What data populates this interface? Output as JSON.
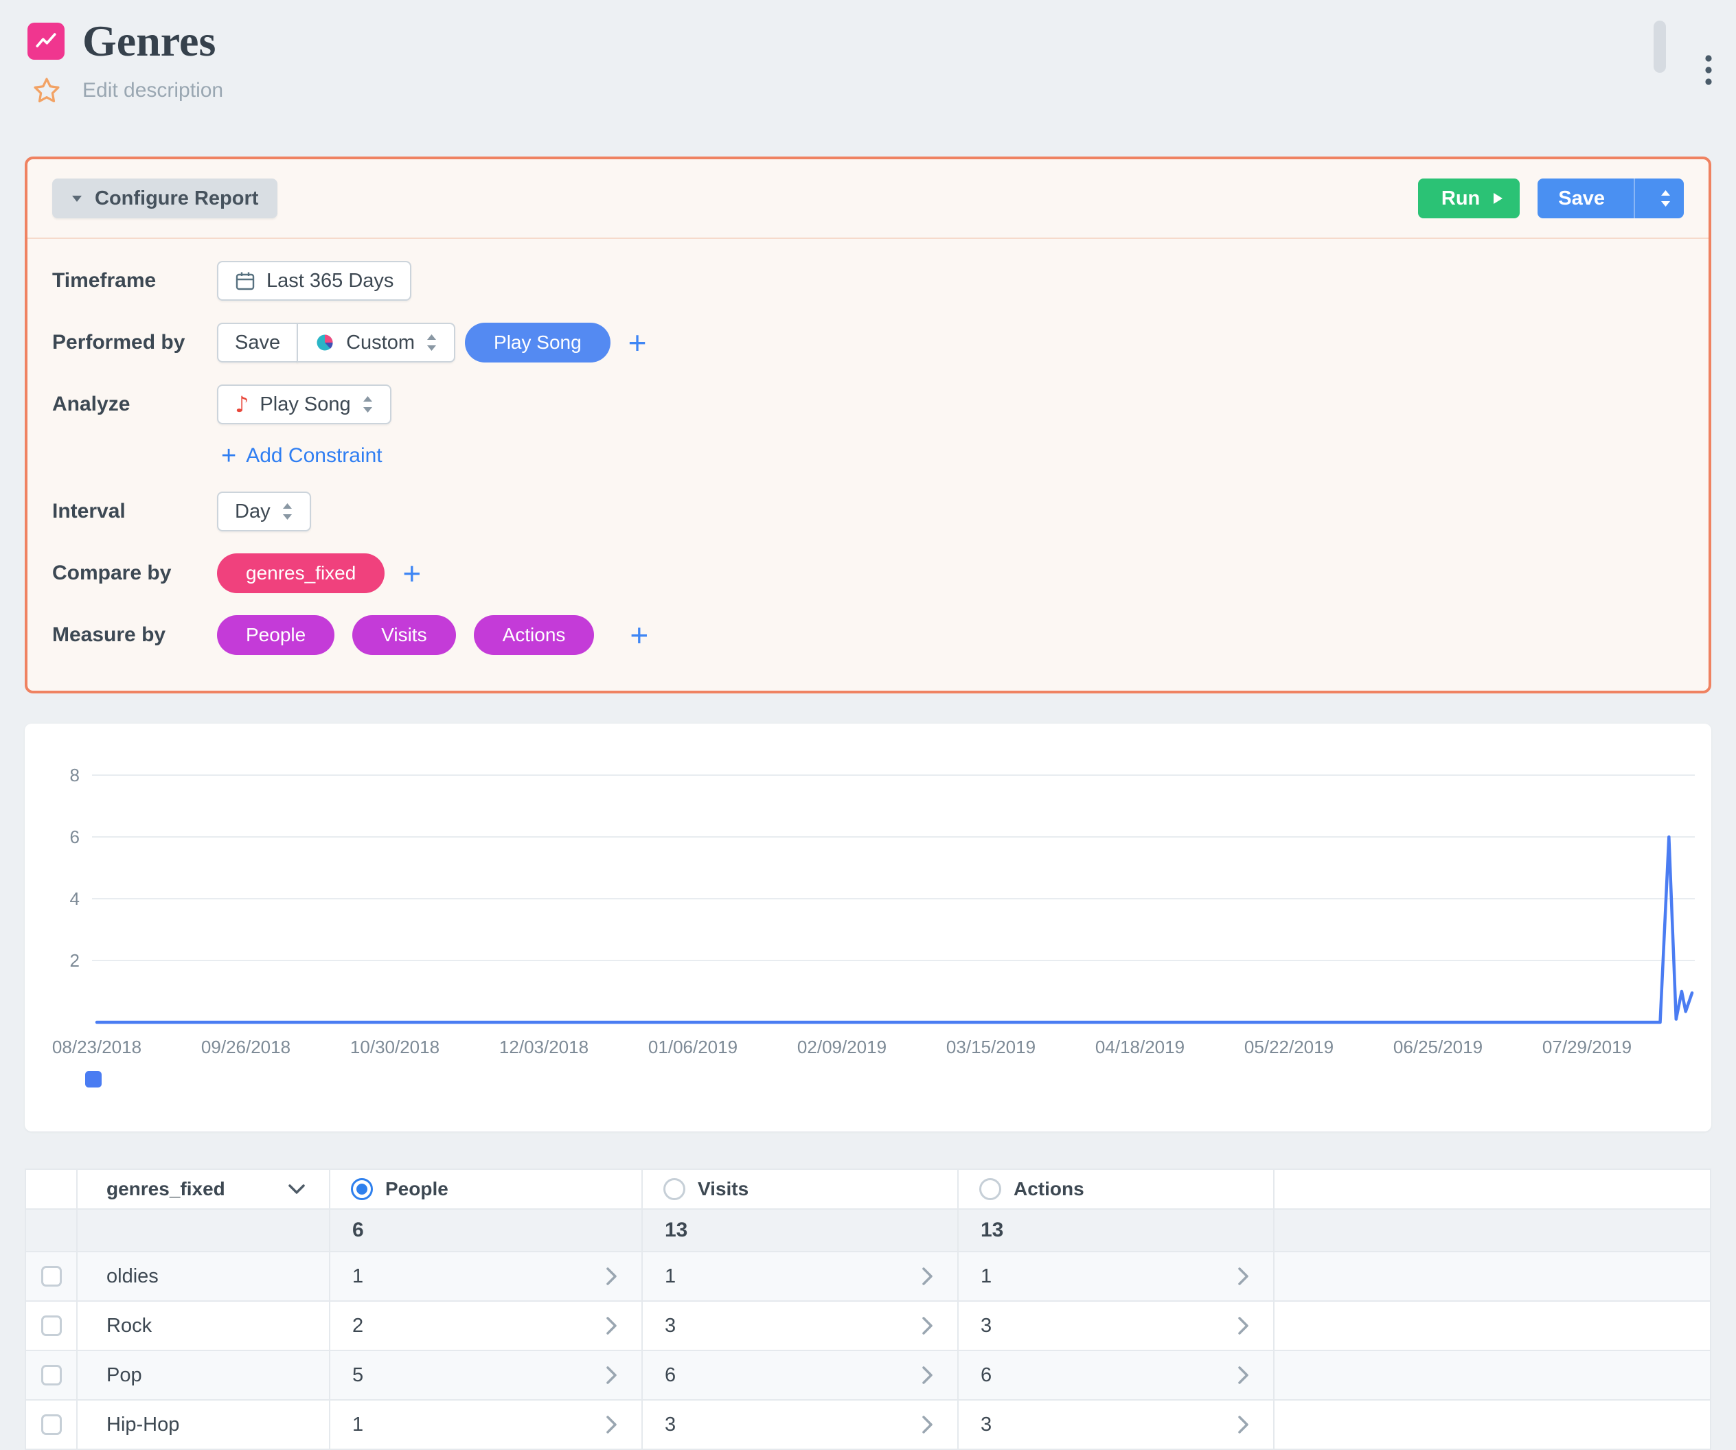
{
  "header": {
    "title": "Genres",
    "edit_description": "Edit description"
  },
  "toolbar": {
    "configure_report": "Configure Report",
    "run": "Run",
    "save": "Save"
  },
  "form": {
    "timeframe_label": "Timeframe",
    "timeframe_value": "Last 365 Days",
    "performed_by_label": "Performed by",
    "performed_by_save": "Save",
    "performed_by_segment": "Custom",
    "performed_by_event": "Play Song",
    "analyze_label": "Analyze",
    "analyze_event": "Play Song",
    "add_constraint": "Add Constraint",
    "interval_label": "Interval",
    "interval_value": "Day",
    "compare_by_label": "Compare by",
    "compare_by_value": "genres_fixed",
    "measure_by_label": "Measure by",
    "measure_pills": [
      "People",
      "Visits",
      "Actions"
    ]
  },
  "chart_data": {
    "type": "line",
    "title": "",
    "xlabel": "",
    "ylabel": "",
    "ylim": [
      0,
      8
    ],
    "y_ticks": [
      2,
      4,
      6,
      8
    ],
    "x_ticks": [
      "08/23/2018",
      "09/26/2018",
      "10/30/2018",
      "12/03/2018",
      "01/06/2019",
      "02/09/2019",
      "03/15/2019",
      "04/18/2019",
      "05/22/2019",
      "06/25/2019",
      "07/29/2019"
    ],
    "grid": true,
    "legend_position": "bottom-left",
    "shape_note": "value 0 across nearly the entire year, sharp spike to 6 in early August 2019, then a small bump to about 1 at the very end",
    "series": [
      {
        "name": "",
        "color": "#4a7cf2",
        "points": [
          [
            0,
            0
          ],
          [
            0.98,
            0
          ],
          [
            0.9855,
            6
          ],
          [
            0.99,
            0.1
          ],
          [
            0.9935,
            1
          ],
          [
            0.996,
            0.35
          ],
          [
            1,
            0.95
          ]
        ]
      }
    ]
  },
  "table": {
    "columns": [
      "genres_fixed",
      "People",
      "Visits",
      "Actions"
    ],
    "selected_measure": "People",
    "totals": {
      "people": "6",
      "visits": "13",
      "actions": "13"
    },
    "rows": [
      {
        "genre": "oldies",
        "people": "1",
        "visits": "1",
        "actions": "1"
      },
      {
        "genre": "Rock",
        "people": "2",
        "visits": "3",
        "actions": "3"
      },
      {
        "genre": "Pop",
        "people": "5",
        "visits": "6",
        "actions": "6"
      },
      {
        "genre": "Hip-Hop",
        "people": "1",
        "visits": "3",
        "actions": "3"
      }
    ]
  },
  "icons": {
    "report": "line-chart",
    "favorite": "star-outline",
    "menu": "kebab-vertical",
    "configure_caret": "caret-down",
    "run_play": "play-triangle",
    "save_split": "up-down-arrows",
    "timeframe": "calendar",
    "custom_segment": "pie-chart",
    "analyze_event": "music-note",
    "dropdown": "up-down-arrows",
    "add": "plus",
    "row_expand": "chevron-right",
    "column_header": "chevron-down"
  },
  "colors": {
    "page_bg": "#edf0f3",
    "accent_pink": "#f0368f",
    "pill_pink": "#f0417d",
    "pill_magenta": "#c43bd8",
    "pill_blue": "#548af2",
    "button_green": "#2bc275",
    "button_blue": "#4a90f2",
    "panel_border": "#ef8261",
    "panel_bg": "#fcf7f3",
    "chart_line": "#4a7cf2",
    "radio_selected": "#2f80ed"
  }
}
